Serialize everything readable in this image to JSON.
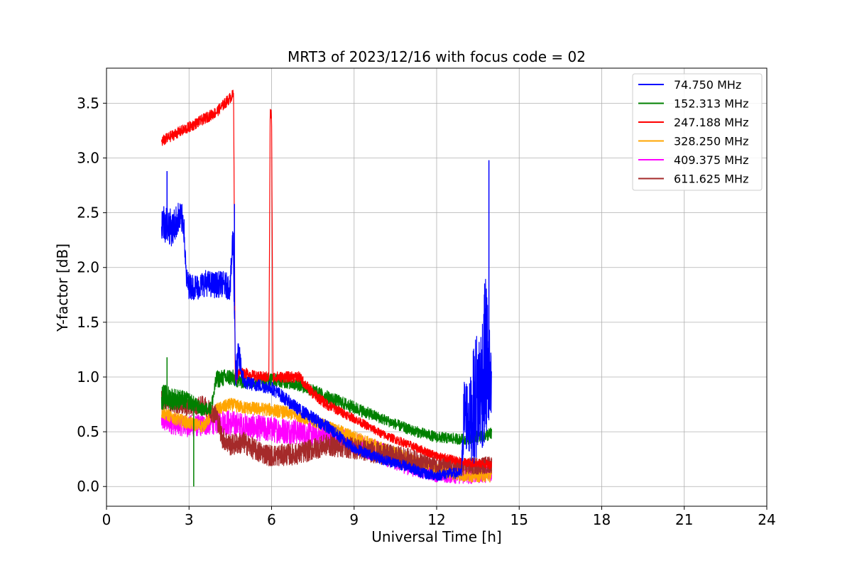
{
  "chart_data": {
    "type": "line",
    "title": "MRT3 of 2023/12/16 with focus code = 02",
    "xlabel": "Universal Time [h]",
    "ylabel": "Y-factor [dB]",
    "xlim": [
      0,
      24
    ],
    "ylim": [
      -0.18,
      3.82
    ],
    "xticks": [
      0,
      3,
      6,
      9,
      12,
      15,
      18,
      21,
      24
    ],
    "yticks": [
      0.0,
      0.5,
      1.0,
      1.5,
      2.0,
      2.5,
      3.0,
      3.5
    ],
    "xtick_labels": [
      "0",
      "3",
      "6",
      "9",
      "12",
      "15",
      "18",
      "21",
      "24"
    ],
    "ytick_labels": [
      "0.0",
      "0.5",
      "1.0",
      "1.5",
      "2.0",
      "2.5",
      "3.0",
      "3.5"
    ],
    "grid": true,
    "legend_position": "top-right",
    "series": [
      {
        "name": " 74.750 MHz",
        "color": "#0000ff",
        "x": [
          2.0,
          2.2,
          2.4,
          2.6,
          2.8,
          2.9,
          3.0,
          3.3,
          3.6,
          3.9,
          4.2,
          4.5,
          4.6,
          4.7,
          4.8,
          5.0,
          6.0,
          7.0,
          8.0,
          9.0,
          10.0,
          11.0,
          11.5,
          12.0,
          12.5,
          12.9,
          13.0,
          13.2,
          13.4,
          13.6,
          13.8,
          13.9,
          14.0
        ],
        "y": [
          2.42,
          2.4,
          2.35,
          2.45,
          2.43,
          1.9,
          1.83,
          1.82,
          1.86,
          1.84,
          1.85,
          1.82,
          2.3,
          1.0,
          1.2,
          0.95,
          0.9,
          0.7,
          0.55,
          0.35,
          0.25,
          0.18,
          0.12,
          0.1,
          0.12,
          0.12,
          0.7,
          0.6,
          0.8,
          0.9,
          1.2,
          1.0,
          0.8
        ],
        "amplitude": [
          0.18,
          0.18,
          0.16,
          0.15,
          0.14,
          0.1,
          0.12,
          0.12,
          0.12,
          0.12,
          0.12,
          0.12,
          0.2,
          0.15,
          0.15,
          0.06,
          0.06,
          0.06,
          0.06,
          0.05,
          0.05,
          0.05,
          0.05,
          0.05,
          0.05,
          0.05,
          0.35,
          0.35,
          0.6,
          0.6,
          0.8,
          0.6,
          0.3
        ]
      },
      {
        "name": "152.313 MHz",
        "color": "#008000",
        "x": [
          2.0,
          2.5,
          3.0,
          3.5,
          3.8,
          4.0,
          4.5,
          5.0,
          6.0,
          7.0,
          8.0,
          9.0,
          10.0,
          11.0,
          12.0,
          13.0,
          14.0
        ],
        "y": [
          0.82,
          0.8,
          0.78,
          0.7,
          0.72,
          0.98,
          1.0,
          0.95,
          0.98,
          0.93,
          0.82,
          0.72,
          0.62,
          0.52,
          0.45,
          0.43,
          0.48
        ],
        "amplitude": [
          0.12,
          0.1,
          0.08,
          0.06,
          0.06,
          0.08,
          0.08,
          0.06,
          0.06,
          0.06,
          0.06,
          0.06,
          0.05,
          0.05,
          0.05,
          0.05,
          0.06
        ]
      },
      {
        "name": "247.188 MHz",
        "color": "#ff0000",
        "x": [
          2.0,
          2.5,
          3.0,
          3.5,
          4.0,
          4.5,
          4.62,
          4.68,
          4.8,
          5.5,
          5.9,
          5.95,
          6.0,
          6.05,
          6.1,
          6.5,
          7.0,
          7.5,
          8.0,
          9.0,
          10.0,
          11.0,
          12.0,
          13.0,
          14.0
        ],
        "y": [
          3.15,
          3.22,
          3.28,
          3.35,
          3.42,
          3.55,
          3.58,
          0.95,
          1.05,
          1.0,
          1.0,
          3.4,
          3.4,
          1.0,
          1.0,
          1.0,
          1.0,
          0.85,
          0.75,
          0.62,
          0.48,
          0.38,
          0.28,
          0.22,
          0.2
        ],
        "amplitude": [
          0.05,
          0.05,
          0.05,
          0.05,
          0.05,
          0.05,
          0.05,
          0.05,
          0.05,
          0.05,
          0.05,
          0.05,
          0.05,
          0.05,
          0.05,
          0.05,
          0.05,
          0.05,
          0.05,
          0.04,
          0.04,
          0.04,
          0.04,
          0.04,
          0.04
        ]
      },
      {
        "name": "328.250 MHz",
        "color": "#ffa500",
        "x": [
          2.0,
          2.5,
          3.0,
          3.5,
          4.0,
          4.5,
          5.0,
          6.0,
          7.0,
          8.0,
          9.0,
          10.0,
          11.0,
          12.0,
          13.0,
          14.0
        ],
        "y": [
          0.68,
          0.62,
          0.58,
          0.55,
          0.7,
          0.75,
          0.72,
          0.7,
          0.65,
          0.55,
          0.45,
          0.35,
          0.25,
          0.15,
          0.1,
          0.1
        ],
        "amplitude": [
          0.06,
          0.06,
          0.06,
          0.06,
          0.06,
          0.06,
          0.06,
          0.06,
          0.06,
          0.06,
          0.06,
          0.06,
          0.06,
          0.06,
          0.06,
          0.06
        ]
      },
      {
        "name": "409.375 MHz",
        "color": "#ff00ff",
        "x": [
          2.0,
          2.5,
          3.0,
          3.5,
          4.0,
          4.5,
          5.0,
          6.0,
          7.0,
          8.0,
          9.0,
          10.0,
          11.0,
          12.0,
          13.0,
          14.0
        ],
        "y": [
          0.6,
          0.57,
          0.55,
          0.56,
          0.6,
          0.58,
          0.55,
          0.52,
          0.5,
          0.45,
          0.4,
          0.3,
          0.2,
          0.12,
          0.1,
          0.12
        ],
        "amplitude": [
          0.1,
          0.1,
          0.1,
          0.1,
          0.12,
          0.12,
          0.12,
          0.12,
          0.12,
          0.12,
          0.1,
          0.1,
          0.1,
          0.08,
          0.08,
          0.08
        ]
      },
      {
        "name": "611.625 MHz",
        "color": "#a52a2a",
        "x": [
          2.0,
          2.5,
          3.0,
          3.5,
          4.0,
          4.2,
          4.5,
          5.0,
          5.5,
          6.0,
          7.0,
          8.0,
          9.0,
          10.0,
          11.0,
          12.0,
          13.0,
          14.0
        ],
        "y": [
          0.8,
          0.75,
          0.72,
          0.75,
          0.65,
          0.45,
          0.38,
          0.4,
          0.32,
          0.28,
          0.3,
          0.38,
          0.35,
          0.3,
          0.25,
          0.2,
          0.18,
          0.2
        ],
        "amplitude": [
          0.08,
          0.08,
          0.08,
          0.08,
          0.1,
          0.1,
          0.1,
          0.1,
          0.1,
          0.1,
          0.1,
          0.1,
          0.1,
          0.1,
          0.1,
          0.08,
          0.08,
          0.08
        ]
      }
    ],
    "spikes": [
      {
        "series": 0,
        "x": 2.2,
        "y": 2.88
      },
      {
        "series": 0,
        "x": 4.65,
        "y": 2.58
      },
      {
        "series": 0,
        "x": 13.9,
        "y": 2.98
      },
      {
        "series": 1,
        "x": 3.17,
        "y": 0.0
      },
      {
        "series": 1,
        "x": 2.2,
        "y": 1.18
      }
    ]
  }
}
